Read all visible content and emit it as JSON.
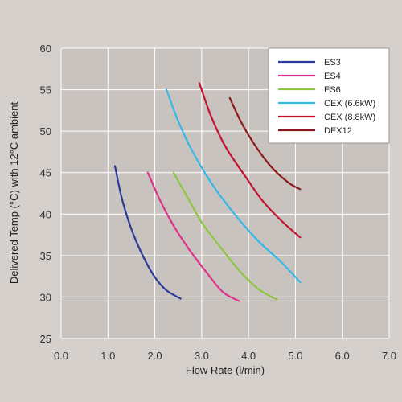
{
  "chart_data": {
    "type": "line",
    "xlabel": "Flow Rate (l/min)",
    "ylabel": "Delivered Temp (°C) with 12°C ambient",
    "xlim": [
      0,
      7
    ],
    "ylim": [
      25,
      60
    ],
    "x_ticks": [
      "0.0",
      "1.0",
      "2.0",
      "3.0",
      "4.0",
      "5.0",
      "6.0",
      "7.0"
    ],
    "y_ticks": [
      "25",
      "30",
      "35",
      "40",
      "45",
      "50",
      "55",
      "60"
    ],
    "grid": true,
    "legend_position": "top-right",
    "series": [
      {
        "name": "ES3",
        "color": "#2a3a9a",
        "x": [
          1.15,
          1.3,
          1.5,
          1.75,
          2.0,
          2.25,
          2.55
        ],
        "y": [
          45.8,
          41.8,
          38.2,
          34.9,
          32.4,
          30.8,
          29.8
        ]
      },
      {
        "name": "ES4",
        "color": "#e0318a",
        "x": [
          1.85,
          2.1,
          2.4,
          2.75,
          3.1,
          3.45,
          3.8
        ],
        "y": [
          45.0,
          41.8,
          38.6,
          35.6,
          33.0,
          30.6,
          29.5
        ]
      },
      {
        "name": "ES6",
        "color": "#8dc63f",
        "x": [
          2.4,
          2.7,
          3.0,
          3.4,
          3.8,
          4.2,
          4.6
        ],
        "y": [
          45.0,
          42.0,
          39.0,
          36.0,
          33.2,
          31.0,
          29.7
        ]
      },
      {
        "name": "CEX (6.6kW)",
        "color": "#35b8e6",
        "x": [
          2.25,
          2.5,
          2.8,
          3.2,
          3.7,
          4.2,
          4.7,
          5.1
        ],
        "y": [
          55.0,
          51.2,
          47.6,
          43.8,
          40.0,
          36.8,
          34.2,
          31.8
        ]
      },
      {
        "name": "CEX (8.8kW)",
        "color": "#c4122f",
        "x": [
          2.95,
          3.2,
          3.5,
          3.9,
          4.3,
          4.7,
          5.1
        ],
        "y": [
          55.8,
          51.8,
          48.2,
          44.8,
          41.6,
          39.2,
          37.2
        ]
      },
      {
        "name": "DEX12",
        "color": "#8b1a1a",
        "x": [
          3.6,
          3.85,
          4.15,
          4.5,
          4.85,
          5.1
        ],
        "y": [
          54.0,
          51.0,
          48.2,
          45.6,
          43.8,
          43.0
        ]
      }
    ]
  }
}
